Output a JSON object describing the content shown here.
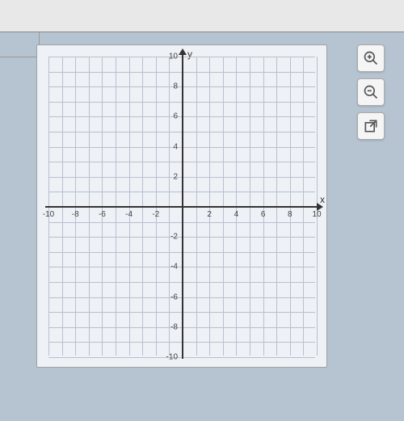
{
  "chart": {
    "type": "scatter",
    "title": "",
    "xlabel": "x",
    "ylabel": "y",
    "xlim": [
      -10,
      10
    ],
    "ylim": [
      -10,
      10
    ],
    "xtick_step": 1,
    "ytick_step": 1,
    "xtick_labels": [
      -10,
      -8,
      -6,
      -4,
      -2,
      2,
      4,
      6,
      8,
      10
    ],
    "ytick_labels": [
      -10,
      -8,
      -6,
      -4,
      -2,
      2,
      4,
      6,
      8,
      10
    ],
    "grid": true,
    "grid_color": "#b8c0d0",
    "axis_color": "#333333",
    "background_color": "#eef1f5",
    "outer_background": "#b5c4d0",
    "label_fontsize": 10,
    "axis_label_fontsize": 12,
    "series": []
  },
  "tools": {
    "zoom_in": "Zoom In",
    "zoom_out": "Zoom Out",
    "open_new": "Open in new window"
  }
}
